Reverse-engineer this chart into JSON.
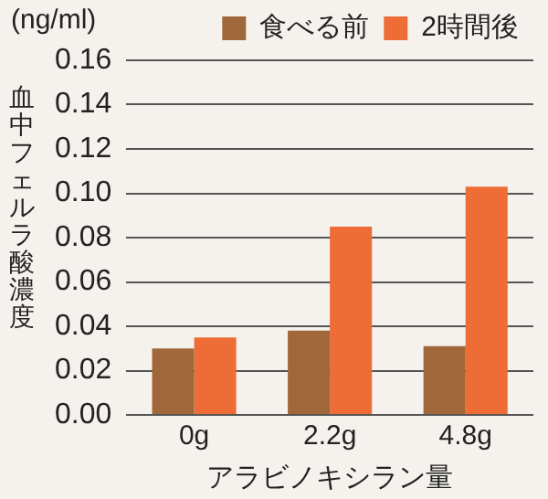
{
  "chart_data": {
    "type": "bar",
    "xlabel": "アラビノキシラン量",
    "ylabel": "血中フェルラ酸濃度",
    "annotations": [
      "(ng/ml)"
    ],
    "categories": [
      "0g",
      "2.2g",
      "4.8g"
    ],
    "series": [
      {
        "name": "食べる前",
        "color": "#a0673a",
        "values": [
          0.03,
          0.038,
          0.031
        ]
      },
      {
        "name": "2時間後",
        "color": "#ee6c35",
        "values": [
          0.035,
          0.085,
          0.103
        ]
      }
    ],
    "ylim": [
      0,
      0.16
    ],
    "yticks": [
      {
        "value": 0,
        "label": "0.00"
      },
      0.02,
      0.04,
      0.06,
      0.08,
      {
        "value": 0.1,
        "label": "0.10"
      },
      0.12,
      0.14,
      0.16
    ],
    "grid": "y",
    "legend": "top right"
  }
}
